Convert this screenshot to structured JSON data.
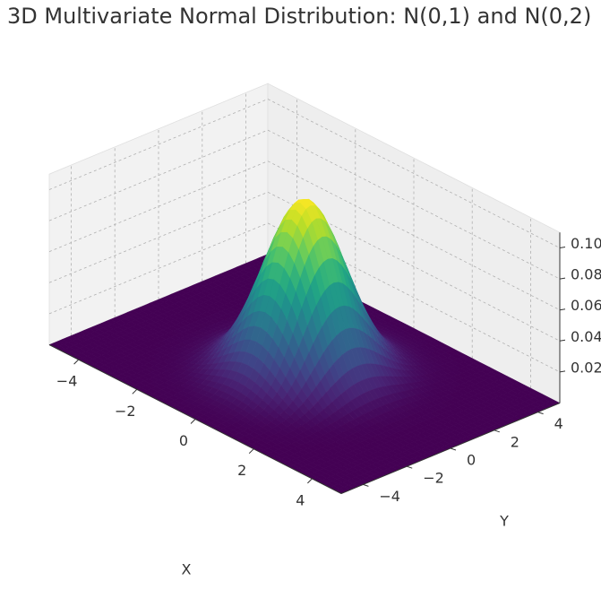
{
  "chart_data": {
    "type": "surface3d",
    "title": "3D Multivariate Normal Distribution: N(0,1) and N(0,2)",
    "xlabel": "X",
    "ylabel": "Y",
    "zlabel": "",
    "xlim": [
      -5,
      5
    ],
    "ylim": [
      -5,
      5
    ],
    "zlim": [
      0,
      0.11
    ],
    "grid": true,
    "colormap": "viridis",
    "mean": [
      0,
      0
    ],
    "variance": [
      1,
      2
    ],
    "peak_density": 0.1125,
    "x_ticks": [
      "−4",
      "−2",
      "0",
      "2",
      "4"
    ],
    "x_tick_values": [
      -4,
      -2,
      0,
      2,
      4
    ],
    "y_ticks": [
      "−4",
      "−2",
      "0",
      "2",
      "4"
    ],
    "y_tick_values": [
      -4,
      -2,
      0,
      2,
      4
    ],
    "z_ticks": [
      "0.02",
      "0.04",
      "0.06",
      "0.08",
      "0.10"
    ],
    "z_tick_values": [
      0.02,
      0.04,
      0.06,
      0.08,
      0.1
    ]
  }
}
